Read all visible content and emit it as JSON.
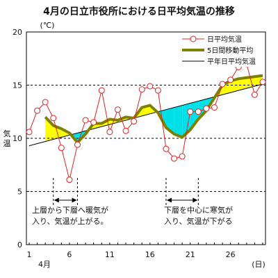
{
  "chart_data": {
    "type": "line",
    "title": "4月の日立市役所における日平均気温の推移",
    "y_unit": "(℃)",
    "y_label_chars": [
      "気",
      "温"
    ],
    "x_unit": "(日)",
    "month_label": "4月",
    "ylim": [
      0,
      20
    ],
    "xlim": [
      1,
      30
    ],
    "y_ticks": [
      0,
      5,
      10,
      15,
      20
    ],
    "x_ticks": [
      1,
      6,
      11,
      16,
      21,
      26
    ],
    "grid": "dashed horizontal at 5, 10, 15",
    "legend_position": "top-right",
    "x": [
      1,
      2,
      3,
      4,
      5,
      6,
      7,
      8,
      9,
      10,
      11,
      12,
      13,
      14,
      15,
      16,
      17,
      18,
      19,
      20,
      21,
      22,
      23,
      24,
      25,
      26,
      27,
      28,
      29,
      30
    ],
    "series": [
      {
        "name": "日平均気温",
        "style": "line-with-circle-markers",
        "color": "#e02020",
        "values": [
          10.6,
          12.6,
          13.4,
          11.9,
          9.1,
          6.1,
          9.4,
          11.7,
          11.5,
          14.5,
          10.6,
          12.7,
          10.7,
          11.6,
          14.6,
          14.9,
          14.5,
          9.0,
          8.1,
          8.3,
          12.5,
          12.5,
          12.8,
          12.9,
          15.1,
          15.5,
          16.7,
          17.0,
          14.1,
          15.3
        ]
      },
      {
        "name": "5日間移動平均",
        "style": "thick-line",
        "color": "#808000",
        "x": [
          3,
          4,
          5,
          6,
          7,
          8,
          9,
          10,
          11,
          12,
          13,
          14,
          15,
          16,
          17,
          18,
          19,
          20,
          21,
          22,
          23,
          24,
          25,
          26,
          27,
          28,
          29,
          30
        ],
        "values": [
          12.0,
          11.2,
          10.9,
          10.5,
          9.6,
          10.4,
          11.4,
          11.4,
          11.8,
          11.7,
          12.0,
          11.9,
          12.9,
          13.1,
          12.4,
          11.0,
          10.4,
          10.1,
          10.8,
          11.8,
          12.6,
          13.8,
          15.0,
          15.4,
          15.6,
          15.7,
          15.8,
          15.9
        ]
      },
      {
        "name": "平年日平均気温",
        "style": "thin-line",
        "color": "#000000",
        "values": [
          9.3,
          9.5,
          9.7,
          9.9,
          10.1,
          10.3,
          10.5,
          10.7,
          10.9,
          11.1,
          11.3,
          11.5,
          11.7,
          11.9,
          12.1,
          12.3,
          12.5,
          12.7,
          12.9,
          13.1,
          13.3,
          13.5,
          13.7,
          13.9,
          14.1,
          14.3,
          14.5,
          14.7,
          14.9,
          15.1
        ]
      }
    ],
    "fill": {
      "above_normal_color": "#ffff00",
      "below_normal_color": "#00e0e8"
    },
    "annotations": [
      {
        "x_from": 4,
        "x_to": 7,
        "lines": [
          "上層から下層へ暖気が",
          "入り、気温が上がる。"
        ]
      },
      {
        "x_from": 18,
        "x_to": 22,
        "lines": [
          "下層を中心に寒気が",
          "入り、気温が下がる"
        ]
      }
    ]
  }
}
